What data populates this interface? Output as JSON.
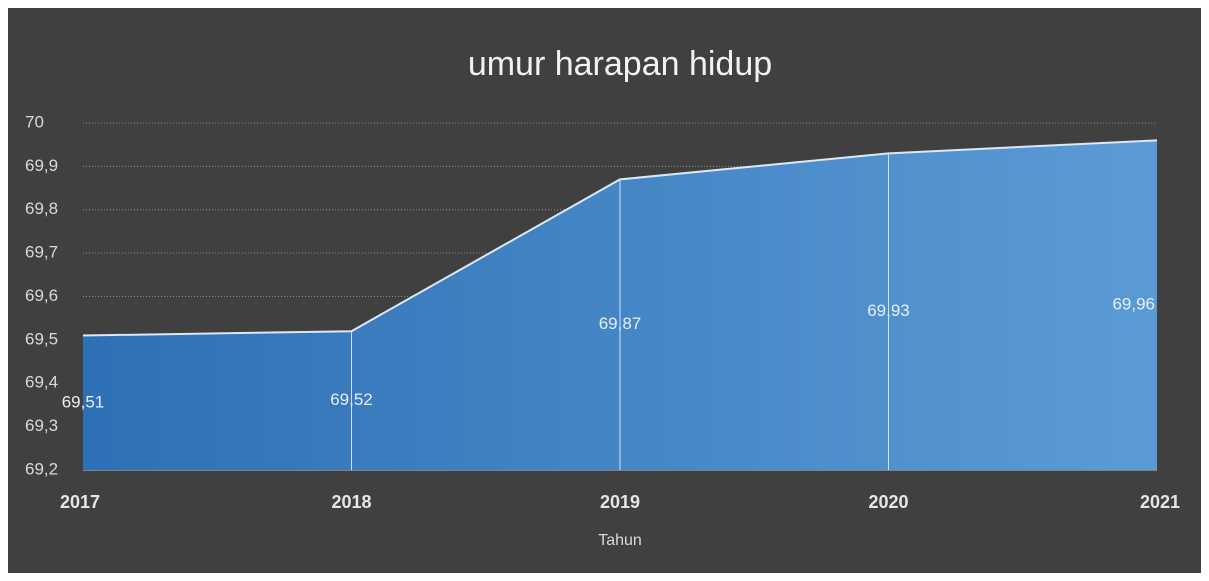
{
  "chart_data": {
    "type": "area",
    "title": "umur harapan hidup",
    "x_label": "Tahun",
    "categories": [
      "2017",
      "2018",
      "2019",
      "2020",
      "2021"
    ],
    "series": [
      {
        "name": "umur harapan hidup",
        "color": "#5b9bd5",
        "values": [
          69.51,
          69.52,
          69.87,
          69.93,
          69.96
        ],
        "value_labels": [
          "69,51",
          "69,52",
          "69,87",
          "69,93",
          "69,96"
        ]
      }
    ],
    "ylim": [
      69.2,
      70
    ],
    "yticks": [
      {
        "value": 69.2,
        "label": "69,2"
      },
      {
        "value": 69.3,
        "label": "69,3"
      },
      {
        "value": 69.4,
        "label": "69,4"
      },
      {
        "value": 69.5,
        "label": "69,5"
      },
      {
        "value": 69.6,
        "label": "69,6"
      },
      {
        "value": 69.7,
        "label": "69,7"
      },
      {
        "value": 69.8,
        "label": "69,8"
      },
      {
        "value": 69.9,
        "label": "69,9"
      },
      70
    ],
    "grid": true
  }
}
